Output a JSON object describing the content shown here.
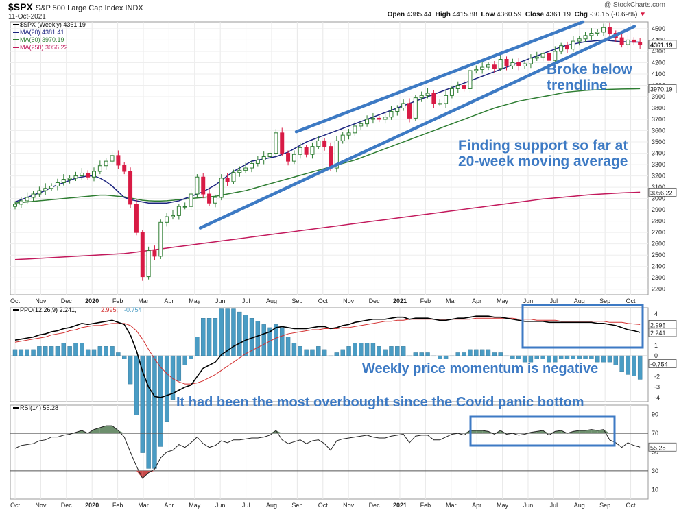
{
  "header": {
    "symbol": "$SPX",
    "description": "S&P 500 Large Cap Index INDX",
    "date": "11-Oct-2021",
    "watermark": "@ StockCharts.com",
    "open_label": "Open",
    "open": "4385.44",
    "high_label": "High",
    "high": "4415.88",
    "low_label": "Low",
    "low": "4360.59",
    "close_label": "Close",
    "close": "4361.19",
    "chg_label": "Chg",
    "chg": "-30.15 (-0.69%)"
  },
  "colors": {
    "up_candle": "#2e7d32",
    "down_candle": "#d81b45",
    "ma20": "#1a237e",
    "ma60": "#2e7d32",
    "ma250": "#c2185b",
    "trendline": "#3d7ac4",
    "ppo_line": "#000000",
    "ppo_signal": "#d32f2f",
    "ppo_hist": "#4a9cc4",
    "rsi_line": "#222222",
    "rsi_overbought_fill": "#6d8f6d",
    "rsi_oversold_fill": "#c94a4a",
    "annotation_text": "#3d7ac4"
  },
  "annotations": {
    "broke_below": "Broke below\ntrendline",
    "support": "Finding support so far at\n20-week moving average",
    "momentum": "Weekly price momentum is negative",
    "overbought": "It had been the most overbought since the Covid panic bottom"
  },
  "chart_data": [
    {
      "panel": "price",
      "type": "candlestick",
      "timeframe": "weekly",
      "legend_placement": "top-left",
      "legend": [
        {
          "text": "$SPX (Weekly) 4361.19",
          "color": "#000000"
        },
        {
          "text": "MA(20) 4381.41",
          "color": "#1a237e"
        },
        {
          "text": "MA(60) 3970.19",
          "color": "#2e7d32"
        },
        {
          "text": "MA(250) 3056.22",
          "color": "#c2185b"
        }
      ],
      "x_tick_labels": [
        "Oct",
        "Nov",
        "Dec",
        "2020",
        "Feb",
        "Mar",
        "Apr",
        "May",
        "Jun",
        "Jul",
        "Aug",
        "Sep",
        "Oct",
        "Nov",
        "Dec",
        "2021",
        "Feb",
        "Mar",
        "Apr",
        "May",
        "Jun",
        "Jul",
        "Aug",
        "Sep",
        "Oct"
      ],
      "y_ticks": [
        2200,
        2300,
        2400,
        2500,
        2600,
        2700,
        2800,
        2900,
        3000,
        3100,
        3200,
        3300,
        3400,
        3500,
        3600,
        3700,
        3800,
        3900,
        4000,
        4100,
        4200,
        4300,
        4400,
        4500
      ],
      "ylim": [
        2150,
        4560
      ],
      "last_value_labels": [
        "4361.19",
        "3970.19",
        "3056.22"
      ],
      "weekly_closes": [
        2950,
        2980,
        3010,
        3040,
        3070,
        3090,
        3110,
        3140,
        3170,
        3180,
        3200,
        3225,
        3190,
        3240,
        3290,
        3330,
        3380,
        3295,
        3240,
        2950,
        2700,
        2310,
        2540,
        2490,
        2790,
        2840,
        2850,
        2930,
        2930,
        3040,
        3190,
        3040,
        2960,
        3010,
        3180,
        3150,
        3230,
        3250,
        3270,
        3310,
        3340,
        3370,
        3400,
        3580,
        3400,
        3330,
        3390,
        3450,
        3390,
        3460,
        3510,
        3460,
        3270,
        3510,
        3560,
        3580,
        3640,
        3660,
        3700,
        3710,
        3700,
        3720,
        3770,
        3800,
        3840,
        3710,
        3890,
        3910,
        3930,
        3840,
        3840,
        3910,
        3970,
        4000,
        3970,
        4130,
        4140,
        4160,
        4180,
        4150,
        4230,
        4170,
        4200,
        4170,
        4190,
        4240,
        4250,
        4280,
        4220,
        4300,
        4350,
        4320,
        4390,
        4410,
        4440,
        4460,
        4470,
        4510,
        4460,
        4420,
        4360,
        4400,
        4380,
        4361
      ],
      "ma20": [
        2970,
        2990,
        3010,
        3030,
        3050,
        3070,
        3100,
        3120,
        3140,
        3160,
        3180,
        3190,
        3200,
        3200,
        3180,
        3150,
        3110,
        3060,
        3010,
        2990,
        2980,
        2970,
        2960,
        2960,
        2960,
        2960,
        2970,
        2980,
        3000,
        3020,
        3040,
        3060,
        3090,
        3120,
        3160,
        3200,
        3240,
        3270,
        3300,
        3330,
        3340,
        3350,
        3360,
        3370,
        3390,
        3410,
        3440,
        3470,
        3500,
        3520,
        3540,
        3560,
        3580,
        3600,
        3620,
        3640,
        3660,
        3680,
        3700,
        3720,
        3740,
        3760,
        3780,
        3800,
        3820,
        3840,
        3860,
        3880,
        3900,
        3920,
        3940,
        3960,
        3980,
        4000,
        4020,
        4040,
        4060,
        4080,
        4100,
        4120,
        4140,
        4160,
        4180,
        4200,
        4220,
        4240,
        4260,
        4280,
        4300,
        4320,
        4340,
        4355,
        4365,
        4375,
        4385,
        4390,
        4395,
        4400,
        4395,
        4390,
        4385,
        4383,
        4382,
        4381
      ],
      "ma60": [
        2960,
        2965,
        2970,
        2975,
        2980,
        2985,
        2990,
        2995,
        3000,
        3005,
        3010,
        3015,
        3020,
        3025,
        3030,
        3030,
        3025,
        3020,
        3015,
        3005,
        2995,
        2985,
        2980,
        2978,
        2978,
        2980,
        2985,
        2990,
        2995,
        3000,
        3005,
        3010,
        3015,
        3020,
        3030,
        3040,
        3050,
        3060,
        3070,
        3085,
        3100,
        3115,
        3130,
        3145,
        3160,
        3175,
        3190,
        3205,
        3220,
        3235,
        3250,
        3265,
        3280,
        3295,
        3310,
        3325,
        3340,
        3360,
        3380,
        3400,
        3420,
        3440,
        3460,
        3480,
        3500,
        3520,
        3540,
        3560,
        3580,
        3600,
        3620,
        3640,
        3660,
        3680,
        3700,
        3720,
        3740,
        3760,
        3780,
        3800,
        3815,
        3830,
        3845,
        3860,
        3870,
        3880,
        3890,
        3900,
        3910,
        3920,
        3930,
        3940,
        3945,
        3950,
        3955,
        3958,
        3960,
        3962,
        3964,
        3966,
        3967,
        3968,
        3969,
        3970
      ],
      "ma250": [
        2460,
        2463,
        2466,
        2469,
        2472,
        2475,
        2478,
        2481,
        2484,
        2487,
        2490,
        2493,
        2496,
        2499,
        2502,
        2505,
        2508,
        2511,
        2514,
        2520,
        2527,
        2534,
        2541,
        2548,
        2555,
        2562,
        2569,
        2576,
        2583,
        2590,
        2597,
        2604,
        2611,
        2618,
        2625,
        2632,
        2639,
        2646,
        2653,
        2660,
        2667,
        2674,
        2681,
        2688,
        2695,
        2702,
        2709,
        2716,
        2723,
        2730,
        2737,
        2744,
        2751,
        2758,
        2765,
        2772,
        2779,
        2786,
        2793,
        2800,
        2807,
        2814,
        2821,
        2828,
        2835,
        2842,
        2849,
        2856,
        2863,
        2870,
        2877,
        2884,
        2891,
        2898,
        2905,
        2912,
        2919,
        2926,
        2933,
        2940,
        2947,
        2954,
        2961,
        2968,
        2975,
        2982,
        2989,
        2996,
        3000,
        3005,
        3010,
        3015,
        3020,
        3025,
        3030,
        3035,
        3038,
        3041,
        3044,
        3047,
        3050,
        3052,
        3054,
        3056
      ],
      "trendlines": [
        {
          "from": [
            "Sep 2020",
            3590
          ],
          "to": [
            "Sep 2021",
            4560
          ]
        },
        {
          "from": [
            "May 2020",
            2740
          ],
          "to": [
            "Sep 2021",
            4520
          ]
        }
      ]
    },
    {
      "panel": "ppo",
      "type": "line+histogram",
      "legend": [
        {
          "text": "PPO(12,26,9) 2.241,",
          "color": "#000000"
        },
        {
          "text": "2.995,",
          "color": "#d32f2f"
        },
        {
          "text": "-0.754",
          "color": "#4a9cc4"
        }
      ],
      "y_ticks": [
        -4,
        -3,
        -2,
        -1,
        0,
        1,
        2,
        3,
        4
      ],
      "ylim": [
        -4.4,
        4.6
      ],
      "last_value_labels": [
        "2.995",
        "2.241",
        "-0.754"
      ],
      "ppo": [
        1.5,
        1.6,
        1.7,
        1.8,
        2.0,
        2.1,
        2.3,
        2.4,
        2.6,
        2.7,
        2.9,
        3.1,
        3.0,
        3.1,
        3.2,
        3.3,
        3.4,
        3.2,
        3.0,
        2.0,
        0.5,
        -1.5,
        -3.0,
        -3.9,
        -4.0,
        -3.8,
        -3.6,
        -3.3,
        -3.0,
        -2.8,
        -2.0,
        -1.2,
        -0.9,
        -0.6,
        0.1,
        0.5,
        0.9,
        1.2,
        1.5,
        1.7,
        1.9,
        2.1,
        2.3,
        2.7,
        2.8,
        2.7,
        2.6,
        2.6,
        2.6,
        2.7,
        2.8,
        2.8,
        2.6,
        2.7,
        2.9,
        3.0,
        3.2,
        3.3,
        3.4,
        3.5,
        3.5,
        3.5,
        3.6,
        3.7,
        3.7,
        3.5,
        3.6,
        3.6,
        3.6,
        3.5,
        3.4,
        3.4,
        3.5,
        3.6,
        3.6,
        3.7,
        3.8,
        3.8,
        3.8,
        3.7,
        3.7,
        3.6,
        3.5,
        3.4,
        3.3,
        3.3,
        3.3,
        3.3,
        3.2,
        3.2,
        3.2,
        3.2,
        3.2,
        3.2,
        3.2,
        3.2,
        3.1,
        3.1,
        3.0,
        2.9,
        2.7,
        2.5,
        2.4,
        2.241
      ],
      "signal": [
        1.3,
        1.4,
        1.5,
        1.6,
        1.7,
        1.8,
        2.0,
        2.1,
        2.2,
        2.4,
        2.5,
        2.7,
        2.8,
        2.9,
        2.9,
        3.0,
        3.1,
        3.1,
        3.1,
        2.9,
        2.4,
        1.6,
        0.6,
        -0.3,
        -1.1,
        -1.7,
        -2.2,
        -2.5,
        -2.7,
        -2.7,
        -2.6,
        -2.4,
        -2.1,
        -1.8,
        -1.4,
        -1.0,
        -0.6,
        -0.2,
        0.2,
        0.5,
        0.8,
        1.1,
        1.4,
        1.7,
        1.9,
        2.1,
        2.2,
        2.3,
        2.4,
        2.5,
        2.5,
        2.6,
        2.6,
        2.6,
        2.7,
        2.7,
        2.8,
        2.9,
        3.0,
        3.1,
        3.2,
        3.3,
        3.3,
        3.4,
        3.4,
        3.5,
        3.5,
        3.5,
        3.5,
        3.5,
        3.5,
        3.5,
        3.5,
        3.5,
        3.5,
        3.5,
        3.6,
        3.6,
        3.6,
        3.6,
        3.6,
        3.6,
        3.6,
        3.5,
        3.5,
        3.5,
        3.4,
        3.4,
        3.4,
        3.4,
        3.3,
        3.3,
        3.3,
        3.3,
        3.3,
        3.3,
        3.3,
        3.3,
        3.2,
        3.2,
        3.2,
        3.1,
        3.05,
        2.995
      ],
      "histogram_note": "PPO minus signal, last value -0.754"
    },
    {
      "panel": "rsi",
      "type": "line",
      "legend": [
        {
          "text": "RSI(14) 55.28",
          "color": "#000000"
        }
      ],
      "y_ticks": [
        10,
        30,
        50,
        70,
        90
      ],
      "ylim": [
        0,
        100
      ],
      "reference_lines": [
        70,
        50,
        30
      ],
      "last_value_label": "55.28",
      "rsi": [
        54,
        57,
        58,
        59,
        62,
        63,
        66,
        66,
        68,
        69,
        71,
        73,
        70,
        74,
        76,
        78,
        78,
        73,
        66,
        50,
        35,
        22,
        28,
        32,
        44,
        50,
        52,
        58,
        55,
        60,
        66,
        59,
        55,
        57,
        62,
        60,
        63,
        63,
        64,
        65,
        65,
        66,
        68,
        73,
        63,
        59,
        61,
        63,
        59,
        62,
        63,
        59,
        52,
        62,
        64,
        65,
        66,
        67,
        68,
        66,
        65,
        65,
        67,
        68,
        69,
        60,
        67,
        68,
        68,
        63,
        63,
        66,
        69,
        70,
        68,
        73,
        73,
        73,
        72,
        69,
        73,
        69,
        70,
        68,
        69,
        71,
        72,
        73,
        68,
        72,
        73,
        70,
        72,
        73,
        73,
        74,
        73,
        74,
        63,
        60,
        55,
        60,
        57,
        55.28
      ]
    }
  ]
}
